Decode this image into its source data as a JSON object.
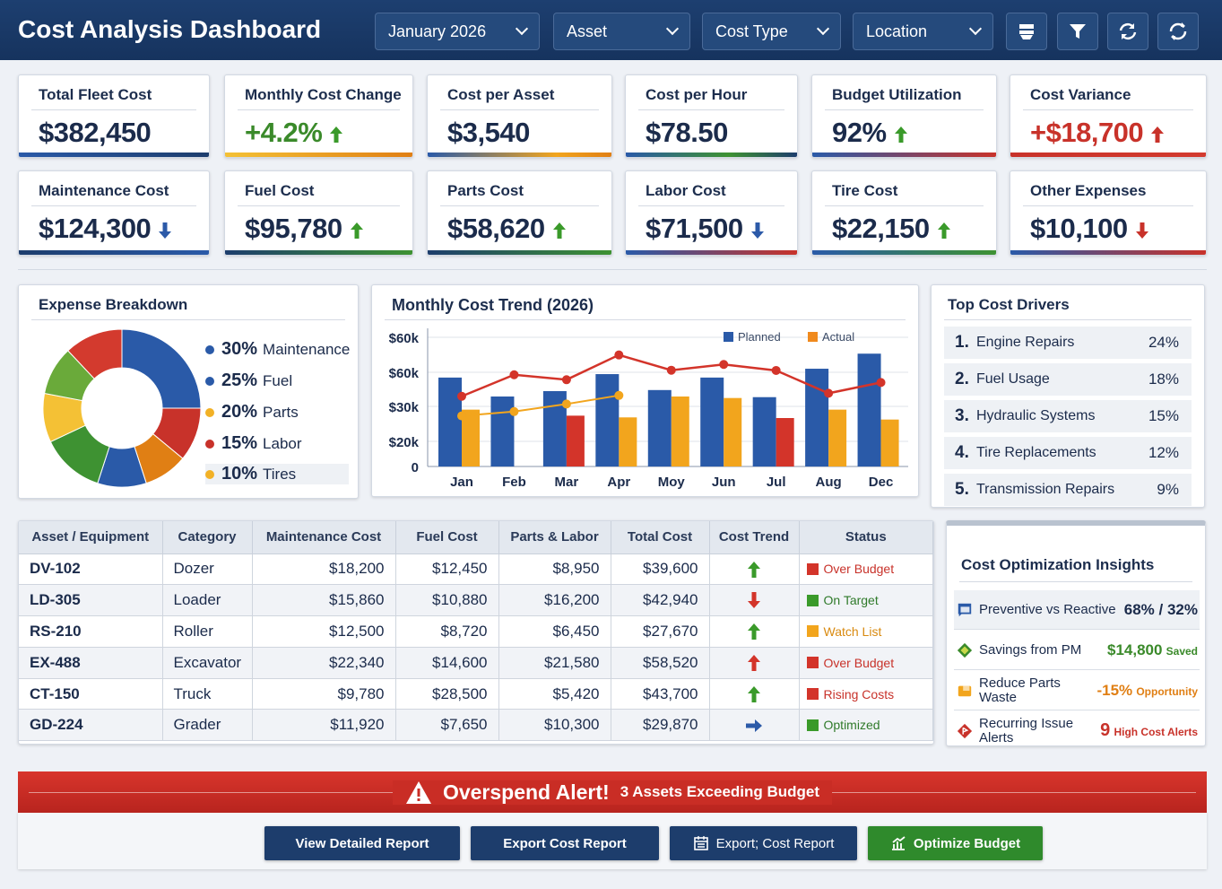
{
  "header": {
    "title": "Cost Analysis Dashboard",
    "filters": [
      {
        "value": "January 2026"
      },
      {
        "value": "Asset"
      },
      {
        "value": "Cost Type"
      },
      {
        "value": "Location"
      }
    ],
    "icons": [
      "layers-icon",
      "filter-icon",
      "refresh-icon",
      "sync-icon"
    ]
  },
  "kpis": [
    {
      "label": "Total Fleet Cost",
      "value": "$382,450",
      "trend": ""
    },
    {
      "label": "Monthly Cost Change",
      "value": "+4.2%",
      "trend": "up"
    },
    {
      "label": "Cost per Asset",
      "value": "$3,540",
      "trend": ""
    },
    {
      "label": "Cost per Hour",
      "value": "$78.50",
      "trend": ""
    },
    {
      "label": "Budget Utilization",
      "value": "92%",
      "trend": "up"
    },
    {
      "label": "Cost Variance",
      "value": "+$18,700",
      "trend": "up-red"
    },
    {
      "label": "Maintenance Cost",
      "value": "$124,300",
      "trend": "down"
    },
    {
      "label": "Fuel Cost",
      "value": "$95,780",
      "trend": "up"
    },
    {
      "label": "Parts Cost",
      "value": "$58,620",
      "trend": "up"
    },
    {
      "label": "Labor Cost",
      "value": "$71,500",
      "trend": "down"
    },
    {
      "label": "Tire Cost",
      "value": "$22,150",
      "trend": "up"
    },
    {
      "label": "Other Expenses",
      "value": "$10,100",
      "trend": "down-red"
    }
  ],
  "expense": {
    "title": "Expense Breakdown",
    "items": [
      {
        "pct": "30%",
        "label": "Maintenance",
        "color": "#2a5aa8"
      },
      {
        "pct": "25%",
        "label": "Fuel",
        "color": "#2a5aa8"
      },
      {
        "pct": "20%",
        "label": "Parts",
        "color": "#f2b126"
      },
      {
        "pct": "15%",
        "label": "Labor",
        "color": "#c8322a"
      },
      {
        "pct": "10%",
        "label": "Tires",
        "color": "#f2b126"
      }
    ],
    "segments": [
      {
        "f": 0.25,
        "c": "#2a5aa8"
      },
      {
        "f": 0.11,
        "c": "#c8322a"
      },
      {
        "f": 0.09,
        "c": "#e07f14"
      },
      {
        "f": 0.1,
        "c": "#2a5aa8"
      },
      {
        "f": 0.13,
        "c": "#3e9232"
      },
      {
        "f": 0.1,
        "c": "#f4c135"
      },
      {
        "f": 0.1,
        "c": "#6aaa3a"
      },
      {
        "f": 0.12,
        "c": "#d33a2e"
      }
    ]
  },
  "chart_data": {
    "type": "bar",
    "title": "Monthly Cost Trend (2026)",
    "categories": [
      "Jan",
      "Feb",
      "Mar",
      "Apr",
      "Moy",
      "Jun",
      "Jul",
      "Aug",
      "Dec"
    ],
    "y_tick_labels": [
      "0",
      "$20k",
      "$30k",
      "$60k",
      "$60k"
    ],
    "ylim": [
      0,
      60
    ],
    "grid": true,
    "legend_position": "top-right",
    "series": [
      {
        "name": "Planned",
        "kind": "bar",
        "color": "#2a5aa8",
        "values": [
          41.3,
          32.5,
          35,
          42.9,
          35.5,
          41.3,
          32.2,
          45.4,
          52.4
        ]
      },
      {
        "name": "Actual",
        "kind": "bar",
        "color": "#f2a51d",
        "values": [
          26.4,
          null,
          23.6,
          22.8,
          32.5,
          31.8,
          22.5,
          26.4,
          21.8
        ],
        "red_flags": [
          false,
          false,
          true,
          false,
          false,
          false,
          true,
          false,
          false
        ]
      },
      {
        "kind": "line",
        "color": "#d3342a",
        "values": [
          32.6,
          42.6,
          40.3,
          51.8,
          44.7,
          47.4,
          44.6,
          34,
          39
        ]
      },
      {
        "kind": "line",
        "color": "#f2a51d",
        "values": [
          23.5,
          25.5,
          29,
          33,
          null,
          null,
          null,
          null,
          null
        ]
      }
    ]
  },
  "drivers": {
    "title": "Top Cost Drivers",
    "items": [
      {
        "rank": "1.",
        "label": "Engine Repairs",
        "pct": "24%"
      },
      {
        "rank": "2.",
        "label": "Fuel Usage",
        "pct": "18%"
      },
      {
        "rank": "3.",
        "label": "Hydraulic Systems",
        "pct": "15%"
      },
      {
        "rank": "4.",
        "label": "Tire Replacements",
        "pct": "12%"
      },
      {
        "rank": "5.",
        "label": "Transmission Repairs",
        "pct": "9%"
      }
    ]
  },
  "table": {
    "headers": [
      "Asset / Equipment",
      "Category",
      "Maintenance Cost",
      "Fuel Cost",
      "Parts & Labor",
      "Total Cost",
      "Cost Trend",
      "Status"
    ],
    "rows": [
      {
        "asset": "DV-102",
        "category": "Dozer",
        "maint": "$18,200",
        "fuel": "$12,450",
        "parts": "$8,950",
        "total": "$39,600",
        "trend": "up-green",
        "status": "Over Budget",
        "status_color": "#d3342a"
      },
      {
        "asset": "LD-305",
        "category": "Loader",
        "maint": "$15,860",
        "fuel": "$10,880",
        "parts": "$16,200",
        "total": "$42,940",
        "trend": "down-red",
        "status": "On Target",
        "status_color": "#3a9a2a"
      },
      {
        "asset": "RS-210",
        "category": "Roller",
        "maint": "$12,500",
        "fuel": "$8,720",
        "parts": "$6,450",
        "total": "$27,670",
        "trend": "up-green",
        "status": "Watch List",
        "status_color": "#f2a51d"
      },
      {
        "asset": "EX-488",
        "category": "Excavator",
        "maint": "$22,340",
        "fuel": "$14,600",
        "parts": "$21,580",
        "total": "$58,520",
        "trend": "up-red",
        "status": "Over Budget",
        "status_color": "#d3342a"
      },
      {
        "asset": "CT-150",
        "category": "Truck",
        "maint": "$9,780",
        "fuel": "$28,500",
        "parts": "$5,420",
        "total": "$43,700",
        "trend": "up-green",
        "status": "Rising Costs",
        "status_color": "#d3342a"
      },
      {
        "asset": "GD-224",
        "category": "Grader",
        "maint": "$11,920",
        "fuel": "$7,650",
        "parts": "$10,300",
        "total": "$29,870",
        "trend": "right-blue",
        "status": "Optimized",
        "status_color": "#3a9a2a"
      }
    ]
  },
  "insights": {
    "title": "Cost Optimization Insights",
    "items": [
      {
        "label": "Preventive vs Reactive",
        "value": "68% / 32%",
        "note": "",
        "color": "#1b2b4b",
        "icon": "calendar-icon"
      },
      {
        "label": "Savings from PM",
        "value": "$14,800",
        "note": "Saved",
        "color": "#3a8a2a",
        "icon": "diamond-icon"
      },
      {
        "label": "Reduce Parts Waste",
        "value": "-15%",
        "note": "Opportunity",
        "color": "#e07f14",
        "icon": "box-icon"
      },
      {
        "label": "Recurring Issue Alerts",
        "value": "9",
        "note": "High Cost Alerts",
        "color": "#c8322a",
        "icon": "alert-diamond-icon"
      }
    ]
  },
  "alert": {
    "title": "Overspend Alert!",
    "text": "3 Assets Exceeding Budget"
  },
  "buttons": [
    {
      "label": "View Detailed Report"
    },
    {
      "label": "Export Cost Report"
    },
    {
      "label": "Export; Cost Report"
    },
    {
      "label": "Optimize Budget"
    }
  ]
}
